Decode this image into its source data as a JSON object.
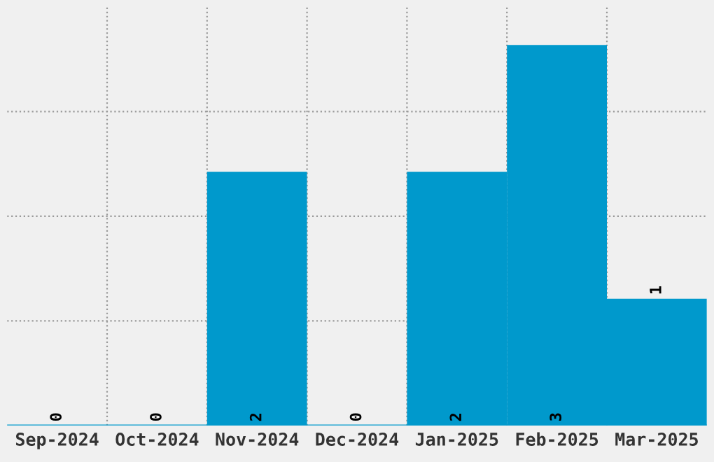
{
  "chart_data": {
    "type": "bar",
    "categories": [
      "Sep-2024",
      "Oct-2024",
      "Nov-2024",
      "Dec-2024",
      "Jan-2025",
      "Feb-2025",
      "Mar-2025"
    ],
    "values": [
      0,
      0,
      2,
      0,
      2,
      3,
      1
    ],
    "color": "#0099cc",
    "data_labels": true,
    "grid": true,
    "tick_labels": "x",
    "ylim": [
      0,
      3.3
    ],
    "yticks": [
      {
        "value": 0.825,
        "label": null
      },
      {
        "value": 1.65,
        "label": null
      },
      {
        "value": 2.475,
        "label": null
      }
    ]
  }
}
